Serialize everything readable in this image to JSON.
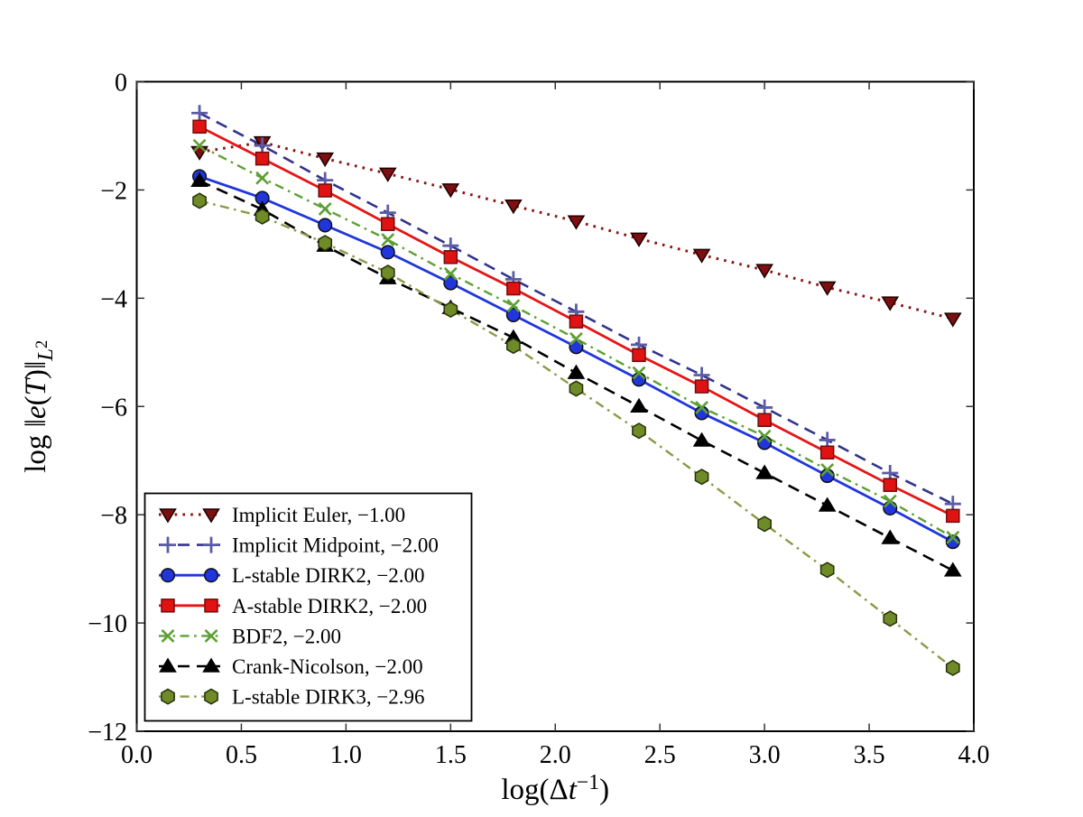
{
  "figure": {
    "background": "#ffffff",
    "frame_color": "#000000",
    "tick_color": "#333333"
  },
  "chart_data": {
    "type": "line",
    "title": "",
    "xlabel_parts": [
      {
        "t": "log(",
        "style": "normal"
      },
      {
        "t": "Δ",
        "style": "normal"
      },
      {
        "t": "t",
        "style": "italic"
      },
      {
        "t": "−1",
        "style": "normal",
        "script": "sup"
      },
      {
        "t": ")",
        "style": "normal"
      }
    ],
    "ylabel_parts": [
      {
        "t": "log ",
        "style": "normal"
      },
      {
        "t": "‖",
        "style": "normal"
      },
      {
        "t": "e",
        "style": "italic"
      },
      {
        "t": "(",
        "style": "normal"
      },
      {
        "t": "T",
        "style": "italic"
      },
      {
        "t": ")",
        "style": "normal"
      },
      {
        "t": "‖",
        "style": "normal"
      },
      {
        "t": "L",
        "style": "italic",
        "script": "sub"
      },
      {
        "t": "2",
        "style": "normal",
        "script": "subsup"
      }
    ],
    "xlim": [
      0.0,
      4.0
    ],
    "ylim": [
      -12,
      0
    ],
    "x_ticks": [
      0.0,
      0.5,
      1.0,
      1.5,
      2.0,
      2.5,
      3.0,
      3.5,
      4.0
    ],
    "x_tick_labels": [
      "0.0",
      "0.5",
      "1.0",
      "1.5",
      "2.0",
      "2.5",
      "3.0",
      "3.5",
      "4.0"
    ],
    "y_ticks": [
      0,
      -2,
      -4,
      -6,
      -8,
      -10,
      -12
    ],
    "y_tick_labels": [
      "0",
      "−2",
      "−4",
      "−6",
      "−8",
      "−10",
      "−12"
    ],
    "grid": false,
    "legend_position": "lower left",
    "x": [
      0.3,
      0.6,
      0.9,
      1.2,
      1.5,
      1.8,
      2.1,
      2.4,
      2.7,
      3.0,
      3.3,
      3.6,
      3.9
    ],
    "series": [
      {
        "name": "Implicit Euler, −1.00",
        "slope": "−1.00",
        "marker": "triangle-down",
        "linestyle": "dotted",
        "color": "#8B1111",
        "marker_fill": "#7E0E10",
        "marker_edge": "#1A0000",
        "values": [
          -1.3,
          -1.12,
          -1.42,
          -1.7,
          -1.99,
          -2.29,
          -2.58,
          -2.9,
          -3.2,
          -3.48,
          -3.8,
          -4.08,
          -4.38
        ]
      },
      {
        "name": "Implicit Midpoint, −2.00",
        "slope": "−2.00",
        "marker": "plus",
        "linestyle": "dashed",
        "color": "#33338D",
        "marker_fill": "none",
        "marker_edge": "#5C5CA6",
        "values": [
          -0.58,
          -1.18,
          -1.82,
          -2.42,
          -3.03,
          -3.65,
          -4.25,
          -4.86,
          -5.42,
          -6.02,
          -6.62,
          -7.23,
          -7.8
        ]
      },
      {
        "name": "L-stable DIRK2, −2.00",
        "slope": "−2.00",
        "marker": "circle",
        "linestyle": "solid",
        "color": "#2036DC",
        "marker_fill": "#2036DC",
        "marker_edge": "#101015",
        "values": [
          -1.75,
          -2.15,
          -2.65,
          -3.15,
          -3.72,
          -4.31,
          -4.9,
          -5.5,
          -6.12,
          -6.67,
          -7.28,
          -7.88,
          -8.5
        ]
      },
      {
        "name": "A-stable DIRK2, −2.00",
        "slope": "−2.00",
        "marker": "square",
        "linestyle": "solid",
        "color": "#E51515",
        "marker_fill": "#E01212",
        "marker_edge": "#6E0E0E",
        "values": [
          -0.83,
          -1.42,
          -2.01,
          -2.63,
          -3.24,
          -3.82,
          -4.43,
          -5.05,
          -5.63,
          -6.25,
          -6.85,
          -7.45,
          -8.02
        ]
      },
      {
        "name": "BDF2, −2.00",
        "slope": "−2.00",
        "marker": "x",
        "linestyle": "dashdot",
        "color": "#5CA033",
        "marker_fill": "none",
        "marker_edge": "#5CA033",
        "values": [
          -1.18,
          -1.78,
          -2.35,
          -2.92,
          -3.55,
          -4.14,
          -4.75,
          -5.38,
          -6.02,
          -6.55,
          -7.17,
          -7.75,
          -8.42
        ]
      },
      {
        "name": "Crank-Nicolson, −2.00",
        "slope": "−2.00",
        "marker": "triangle-up",
        "linestyle": "dashed",
        "color": "#000000",
        "marker_fill": "#000000",
        "marker_edge": "#000000",
        "values": [
          -1.83,
          -2.36,
          -3.03,
          -3.63,
          -4.18,
          -4.73,
          -5.38,
          -6.0,
          -6.63,
          -7.23,
          -7.83,
          -8.43,
          -9.03
        ]
      },
      {
        "name": "L-stable DIRK3, −2.96",
        "slope": "−2.96",
        "marker": "hexagon",
        "linestyle": "dashdot",
        "color": "#8A9A45",
        "marker_fill": "#6E8B28",
        "marker_edge": "#26300A",
        "values": [
          -2.2,
          -2.49,
          -2.98,
          -3.53,
          -4.21,
          -4.88,
          -5.67,
          -6.45,
          -7.3,
          -8.17,
          -9.02,
          -9.92,
          -10.83
        ]
      }
    ]
  }
}
